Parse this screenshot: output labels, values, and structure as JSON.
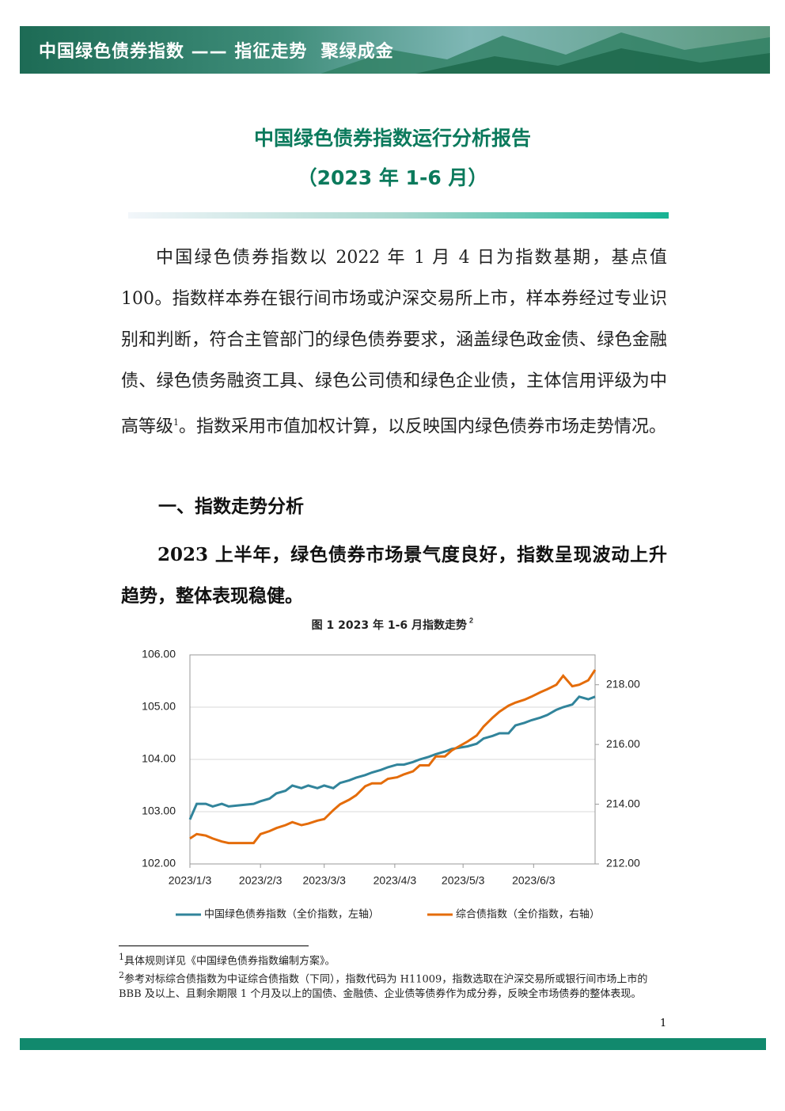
{
  "header": {
    "banner": "中国绿色债券指数 —— 指征走势  聚绿成金"
  },
  "title": "中国绿色债券指数运行分析报告",
  "subtitle": "（2023 年 1-6 月）",
  "paragraphs": [
    {
      "text_before_note": "中国绿色债券指数以 2022 年 1 月 4 日为指数基期，基点值 100。指数样本券在银行间市场或沪深交易所上市，样本券经过专业识别和判断，符合主管部门的绿色债券要求，涵盖绿色政金债、绿色金融债、绿色债务融资工具、绿色公司债和绿色企业债，主体信用评级为中高等级",
      "note_mark": "1",
      "text_after_note": "。指数采用市值加权计算，以反映国内绿色债券市场走势情况。"
    }
  ],
  "section_heading": "一、指数走势分析",
  "bold_paragraph": "2023 上半年，绿色债券市场景气度良好，指数呈现波动上升趋势，整体表现稳健。",
  "chart_data": {
    "type": "line",
    "title": "图 1 2023 年 1-6 月指数走势",
    "title_note_mark": "2",
    "x": [
      "2023/1/3",
      "2023/1/6",
      "2023/1/10",
      "2023/1/13",
      "2023/1/17",
      "2023/1/20",
      "2023/1/31",
      "2023/2/3",
      "2023/2/7",
      "2023/2/10",
      "2023/2/14",
      "2023/2/17",
      "2023/2/21",
      "2023/2/24",
      "2023/2/28",
      "2023/3/3",
      "2023/3/7",
      "2023/3/10",
      "2023/3/14",
      "2023/3/17",
      "2023/3/21",
      "2023/3/24",
      "2023/3/28",
      "2023/3/31",
      "2023/4/4",
      "2023/4/7",
      "2023/4/11",
      "2023/4/14",
      "2023/4/18",
      "2023/4/21",
      "2023/4/25",
      "2023/4/28",
      "2023/5/5",
      "2023/5/9",
      "2023/5/12",
      "2023/5/16",
      "2023/5/19",
      "2023/5/23",
      "2023/5/26",
      "2023/5/30",
      "2023/6/2",
      "2023/6/6",
      "2023/6/9",
      "2023/6/13",
      "2023/6/16",
      "2023/6/20",
      "2023/6/23",
      "2023/6/27",
      "2023/6/30"
    ],
    "xlim": [
      "2023/1/3",
      "2023/6/30"
    ],
    "xticks": [
      "2023/1/3",
      "2023/2/3",
      "2023/3/3",
      "2023/4/3",
      "2023/5/3",
      "2023/6/3"
    ],
    "ylim": [
      102,
      106
    ],
    "yticks": [
      {
        "value": 102,
        "label": "102.00"
      },
      {
        "value": 103,
        "label": "103.00"
      },
      {
        "value": 104,
        "label": "104.00"
      },
      {
        "value": 105,
        "label": "105.00"
      },
      {
        "value": 106,
        "label": "106.00"
      }
    ],
    "y2lim": [
      212,
      219
    ],
    "y2ticks": [
      {
        "value": 212,
        "label": "212.00"
      },
      {
        "value": 214,
        "label": "214.00"
      },
      {
        "value": 216,
        "label": "216.00"
      },
      {
        "value": 218,
        "label": "218.00"
      }
    ],
    "grid": true,
    "legend": "bottom",
    "series": [
      {
        "name": "中国绿色债券指数（全价指数，左轴）",
        "color": "#31849b",
        "values": [
          102.85,
          103.15,
          103.15,
          103.1,
          103.15,
          103.1,
          103.15,
          103.2,
          103.25,
          103.35,
          103.4,
          103.5,
          103.45,
          103.5,
          103.45,
          103.5,
          103.45,
          103.55,
          103.6,
          103.65,
          103.7,
          103.75,
          103.8,
          103.85,
          103.9,
          103.9,
          103.95,
          104.0,
          104.05,
          104.1,
          104.15,
          104.2,
          104.25,
          104.3,
          104.4,
          104.45,
          104.5,
          104.5,
          104.65,
          104.7,
          104.75,
          104.8,
          104.85,
          104.95,
          105.0,
          105.05,
          105.2,
          105.15,
          105.2
        ]
      },
      {
        "name": "综合债指数（全价指数，右轴）",
        "color": "#e46c0a",
        "axis": "y2",
        "values": [
          212.85,
          213.0,
          212.95,
          212.85,
          212.75,
          212.7,
          212.7,
          213.0,
          213.1,
          213.2,
          213.3,
          213.4,
          213.3,
          213.35,
          213.45,
          213.5,
          213.8,
          214.0,
          214.15,
          214.3,
          214.6,
          214.7,
          214.7,
          214.85,
          214.9,
          215.0,
          215.1,
          215.3,
          215.3,
          215.6,
          215.6,
          215.8,
          216.1,
          216.3,
          216.6,
          216.9,
          217.1,
          217.3,
          217.4,
          217.5,
          217.6,
          217.75,
          217.85,
          218.0,
          218.3,
          217.95,
          218.0,
          218.15,
          218.5
        ]
      }
    ]
  },
  "footnotes": [
    {
      "mark": "1",
      "text": "具体规则详见《中国绿色债券指数编制方案》。"
    },
    {
      "mark": "2",
      "text": "参考对标综合债指数为中证综合债指数（下同），指数代码为 H11009，指数选取在沪深交易所或银行间市场上市的 BBB 及以上、且剩余期限 1 个月及以上的国债、金融债、企业债等债券作为成分券，反映全市场债券的整体表现。"
    }
  ],
  "page_number": "1"
}
